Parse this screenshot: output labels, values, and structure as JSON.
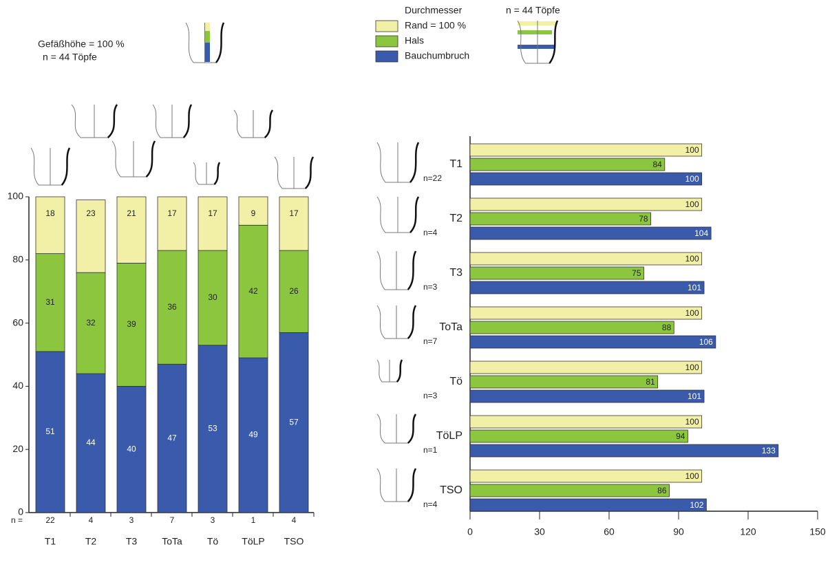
{
  "chart_data": [
    {
      "type": "stacked-bar",
      "annotation": "Gefäßhöhe = 100 %",
      "annotation_n": "n = 44 Töpfe",
      "categories": [
        "T1",
        "T2",
        "T3",
        "ToTa",
        "Tö",
        "TöLP",
        "TSO"
      ],
      "n_label": "n =",
      "n": [
        22,
        4,
        3,
        7,
        3,
        1,
        4
      ],
      "series": [
        {
          "color": "#3a5bab",
          "values": [
            51,
            44,
            40,
            47,
            53,
            49,
            57
          ]
        },
        {
          "color": "#8cc63f",
          "values": [
            31,
            32,
            39,
            36,
            30,
            42,
            26
          ]
        },
        {
          "color": "#f2f0a6",
          "values": [
            18,
            23,
            21,
            17,
            17,
            9,
            17
          ]
        }
      ],
      "ylim": [
        0,
        100
      ],
      "yticks": [
        0,
        20,
        40,
        60,
        80,
        100
      ]
    },
    {
      "type": "grouped-hbar",
      "legend_title": "Durchmesser",
      "annotation_n": "n = 44 Töpfe",
      "categories": [
        "T1",
        "T2",
        "T3",
        "ToTa",
        "Tö",
        "TöLP",
        "TSO"
      ],
      "n_labels": [
        "n=22",
        "n=4",
        "n=3",
        "n=7",
        "n=3",
        "n=1",
        "n=4"
      ],
      "series": [
        {
          "name": "Rand = 100 %",
          "color": "#f2f0a6",
          "values": [
            100,
            100,
            100,
            100,
            100,
            100,
            100
          ]
        },
        {
          "name": "Hals",
          "color": "#8cc63f",
          "values": [
            84,
            78,
            75,
            88,
            81,
            94,
            86
          ]
        },
        {
          "name": "Bauchumbruch",
          "color": "#3a5bab",
          "values": [
            100,
            104,
            101,
            106,
            101,
            133,
            102
          ]
        }
      ],
      "xlim": [
        0,
        150
      ],
      "xticks": [
        0,
        30,
        60,
        90,
        120,
        150
      ]
    }
  ]
}
